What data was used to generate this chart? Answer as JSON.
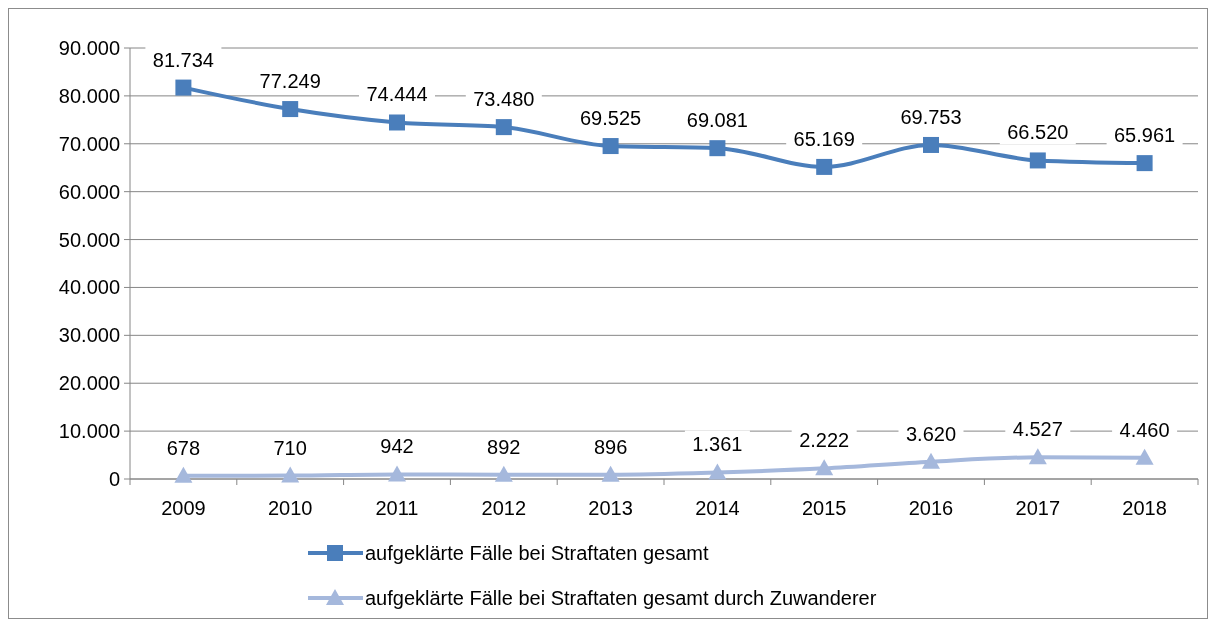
{
  "chart_data": {
    "type": "line",
    "categories": [
      "2009",
      "2010",
      "2011",
      "2012",
      "2013",
      "2014",
      "2015",
      "2016",
      "2017",
      "2018"
    ],
    "ylim": [
      0,
      90000
    ],
    "yticks": [
      {
        "value": 0,
        "label": "0"
      },
      {
        "value": 10000,
        "label": "10.000"
      },
      {
        "value": 20000,
        "label": "20.000"
      },
      {
        "value": 30000,
        "label": "30.000"
      },
      {
        "value": 40000,
        "label": "40.000"
      },
      {
        "value": 50000,
        "label": "50.000"
      },
      {
        "value": 60000,
        "label": "60.000"
      },
      {
        "value": 70000,
        "label": "70.000"
      },
      {
        "value": 80000,
        "label": "80.000"
      },
      {
        "value": 90000,
        "label": "90.000"
      }
    ],
    "grid": "y",
    "legend": "bottom",
    "series": [
      {
        "name": "aufgeklärte Fälle bei Straftaten gesamt",
        "color": "#4a7ebb",
        "marker": "square",
        "values": [
          81734,
          77249,
          74444,
          73480,
          69525,
          69081,
          65169,
          69753,
          66520,
          65961
        ],
        "value_labels": [
          "81.734",
          "77.249",
          "74.444",
          "73.480",
          "69.525",
          "69.081",
          "65.169",
          "69.753",
          "66.520",
          "65.961"
        ]
      },
      {
        "name": "aufgeklärte Fälle bei Straftaten gesamt durch Zuwanderer",
        "color": "#a5b8dc",
        "marker": "triangle",
        "values": [
          678,
          710,
          942,
          892,
          896,
          1361,
          2222,
          3620,
          4527,
          4460
        ],
        "value_labels": [
          "678",
          "710",
          "942",
          "892",
          "896",
          "1.361",
          "2.222",
          "3.620",
          "4.527",
          "4.460"
        ]
      }
    ]
  }
}
